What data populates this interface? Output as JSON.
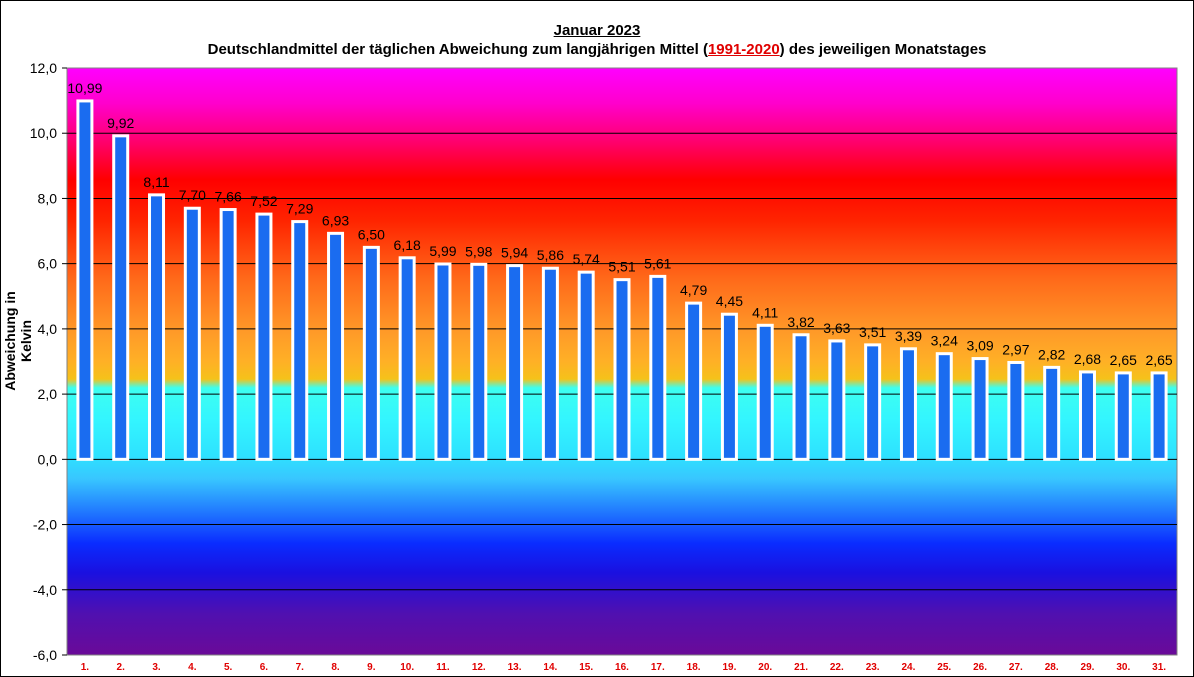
{
  "header": {
    "title": "Januar 2023",
    "subtitle_before": "Deutschlandmittel der täglichen Abweichung zum langjährigen Mittel (",
    "subtitle_period": "1991-2020",
    "subtitle_after": ") des jeweiligen Monatstages"
  },
  "chart_data": {
    "type": "bar",
    "title": "Januar 2023",
    "subtitle": "Deutschlandmittel der täglichen Abweichung zum langjährigen Mittel (1991-2020) des jeweiligen Monatstages",
    "xlabel": "",
    "ylabel": "Abweichung in Kelvin",
    "ylim": [
      -6.0,
      12.0
    ],
    "yticks": [
      "12,0",
      "10,0",
      "8,0",
      "6,0",
      "4,0",
      "2,0",
      "0,0",
      "-2,0",
      "-4,0",
      "-6,0"
    ],
    "ytick_values": [
      12,
      10,
      8,
      6,
      4,
      2,
      0,
      -2,
      -4,
      -6
    ],
    "grid": true,
    "categories": [
      "1.",
      "2.",
      "3.",
      "4.",
      "5.",
      "6.",
      "7.",
      "8.",
      "9.",
      "10.",
      "11.",
      "12.",
      "13.",
      "14.",
      "15.",
      "16.",
      "17.",
      "18.",
      "19.",
      "20.",
      "21.",
      "22.",
      "23.",
      "24.",
      "25.",
      "26.",
      "27.",
      "28.",
      "29.",
      "30.",
      "31."
    ],
    "values": [
      10.99,
      9.92,
      8.11,
      7.7,
      7.66,
      7.52,
      7.29,
      6.93,
      6.5,
      6.18,
      5.99,
      5.98,
      5.94,
      5.86,
      5.74,
      5.51,
      5.61,
      4.79,
      4.45,
      4.11,
      3.82,
      3.63,
      3.51,
      3.39,
      3.24,
      3.09,
      2.97,
      2.82,
      2.68,
      2.65,
      2.65
    ],
    "value_labels": [
      "10,99",
      "9,92",
      "8,11",
      "7,70",
      "7,66",
      "7,52",
      "7,29",
      "6,93",
      "6,50",
      "6,18",
      "5,99",
      "5,98",
      "5,94",
      "5,86",
      "5,74",
      "5,51",
      "5,61",
      "4,79",
      "4,45",
      "4,11",
      "3,82",
      "3,63",
      "3,51",
      "3,39",
      "3,24",
      "3,09",
      "2,97",
      "2,82",
      "2,68",
      "2,65",
      "2,65"
    ],
    "colors": {
      "bar_fill": "#1a6cf0",
      "bar_border": "#ffffff",
      "category_label": "#e00000",
      "period_highlight": "#e00000"
    }
  }
}
